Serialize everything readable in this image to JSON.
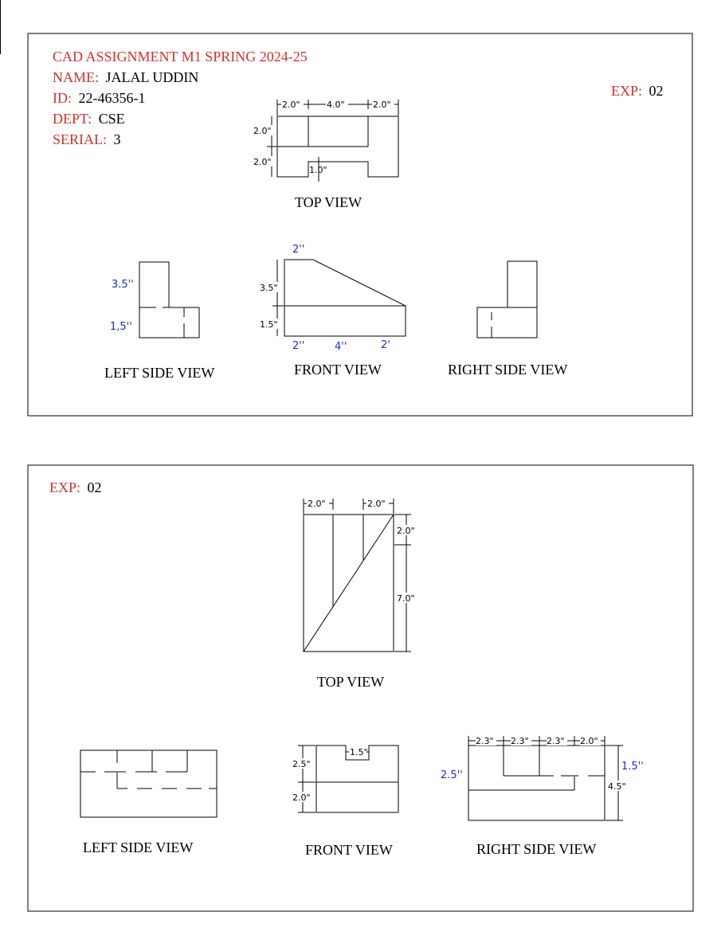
{
  "sheet1": {
    "title": "CAD ASSIGNMENT M1 SPRING 2024-25",
    "name_label": "NAME:",
    "name_value": "JALAL UDDIN",
    "id_label": "ID:",
    "id_value": "22-46356-1",
    "dept_label": "DEPT:",
    "dept_value": "CSE",
    "serial_label": "SERIAL:",
    "serial_value": "3",
    "exp_label": "EXP:",
    "exp_value": "02",
    "top_view": {
      "caption": "TOP VIEW",
      "dims": [
        "2.0\"",
        "4.0\"",
        "2.0\"",
        "2.0\"",
        "2.0\"",
        "1.0\""
      ]
    },
    "front_view": {
      "caption": "FRONT VIEW",
      "dims_black": [
        "3.5\"",
        "1.5\""
      ],
      "dims_blue": [
        "2''",
        "2''",
        "4''",
        "2'"
      ]
    },
    "left_view": {
      "caption": "LEFT SIDE VIEW",
      "dims_blue": [
        "3.5''",
        "1,5''"
      ]
    },
    "right_view": {
      "caption": "RIGHT SIDE VIEW"
    }
  },
  "sheet2": {
    "exp_label": "EXP:",
    "exp_value": "02",
    "top_view": {
      "caption": "TOP VIEW",
      "dims": [
        "2.0\"",
        "2.0\"",
        "2.0\"",
        "7.0\""
      ]
    },
    "left_view": {
      "caption": "LEFT SIDE VIEW"
    },
    "front_view": {
      "caption": "FRONT VIEW",
      "dims": [
        "1.5\"",
        "2.5\"",
        "2.0\""
      ]
    },
    "right_view": {
      "caption": "RIGHT SIDE VIEW",
      "dims": [
        "2.3\"",
        "2.3\"",
        "2.3\"",
        "2.0\"",
        "4.5\""
      ],
      "dims_blue": [
        "2.5''",
        "1.5''"
      ]
    }
  },
  "colors": {
    "label_red": "#d2322d",
    "dim_blue": "#1a2fd6",
    "line": "#000000"
  }
}
